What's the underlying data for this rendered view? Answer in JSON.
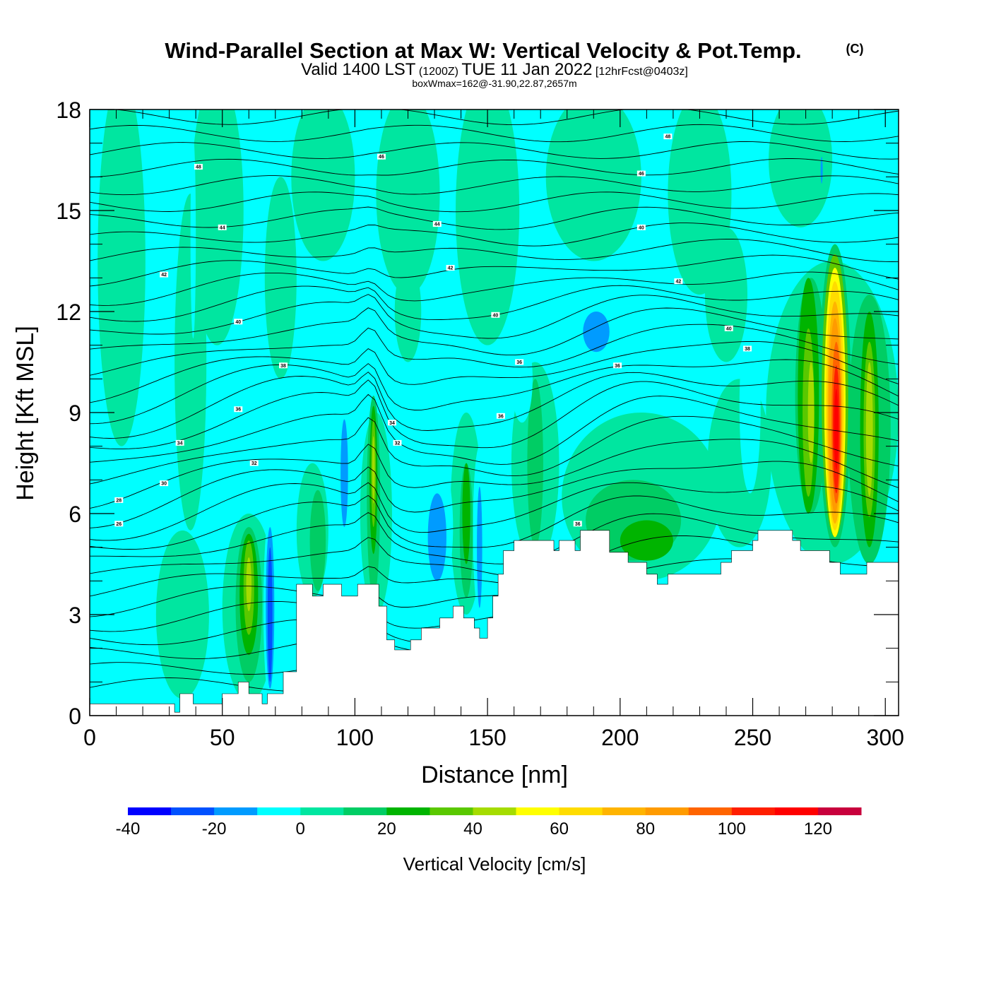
{
  "title": "Wind-Parallel Section at Max W: Vertical Velocity & Pot.Temp.",
  "title_mark": "(C)",
  "subtitle": {
    "valid_a": "Valid 1400 LST",
    "utc": "(1200Z)",
    "valid_b": "TUE 11 Jan 2022",
    "forecast": "[12hrFcst@0403z]"
  },
  "box_wmax": "boxWmax=162@-31.90,22.87,2657m",
  "chart_data": {
    "type": "heatmap",
    "title": "Wind-Parallel Section at Max W: Vertical Velocity & Pot.Temp.",
    "xlabel": "Distance [nm]",
    "ylabel": "Height [Kft MSL]",
    "xlim": [
      0,
      305
    ],
    "ylim": [
      0,
      18
    ],
    "x_ticks": [
      "0",
      "50",
      "100",
      "150",
      "200",
      "250",
      "300"
    ],
    "y_ticks": [
      "0",
      "3",
      "6",
      "9",
      "12",
      "15",
      "18"
    ],
    "x_tick_values": [
      0,
      50,
      100,
      150,
      200,
      250,
      300
    ],
    "y_tick_values": [
      0,
      3,
      6,
      9,
      12,
      15,
      18
    ],
    "terrain": [
      [
        0,
        0.35
      ],
      [
        32,
        0.35
      ],
      [
        32,
        0.1
      ],
      [
        34,
        0.1
      ],
      [
        34,
        0.65
      ],
      [
        39,
        0.65
      ],
      [
        39,
        0.35
      ],
      [
        50,
        0.35
      ],
      [
        50,
        0.65
      ],
      [
        56,
        0.65
      ],
      [
        56,
        1.0
      ],
      [
        60,
        1.0
      ],
      [
        60,
        0.65
      ],
      [
        65,
        0.65
      ],
      [
        65,
        0.35
      ],
      [
        67,
        0.35
      ],
      [
        67,
        0.65
      ],
      [
        73,
        0.65
      ],
      [
        73,
        1.3
      ],
      [
        78,
        1.3
      ],
      [
        78,
        3.9
      ],
      [
        84,
        3.9
      ],
      [
        84,
        3.55
      ],
      [
        88,
        3.55
      ],
      [
        88,
        3.9
      ],
      [
        95,
        3.9
      ],
      [
        95,
        3.55
      ],
      [
        101,
        3.55
      ],
      [
        101,
        3.9
      ],
      [
        109,
        3.9
      ],
      [
        109,
        3.25
      ],
      [
        112,
        3.25
      ],
      [
        112,
        2.25
      ],
      [
        115,
        2.25
      ],
      [
        115,
        1.95
      ],
      [
        121,
        1.95
      ],
      [
        121,
        2.25
      ],
      [
        125,
        2.25
      ],
      [
        125,
        2.6
      ],
      [
        132,
        2.6
      ],
      [
        132,
        2.9
      ],
      [
        137,
        2.9
      ],
      [
        137,
        3.25
      ],
      [
        141,
        3.25
      ],
      [
        141,
        2.9
      ],
      [
        145,
        2.9
      ],
      [
        145,
        2.6
      ],
      [
        147,
        2.6
      ],
      [
        147,
        2.3
      ],
      [
        150,
        2.3
      ],
      [
        150,
        2.9
      ],
      [
        152,
        2.9
      ],
      [
        152,
        3.55
      ],
      [
        154,
        3.55
      ],
      [
        154,
        4.2
      ],
      [
        156,
        4.2
      ],
      [
        156,
        4.9
      ],
      [
        160,
        4.9
      ],
      [
        160,
        5.2
      ],
      [
        175,
        5.2
      ],
      [
        175,
        4.9
      ],
      [
        177,
        4.9
      ],
      [
        177,
        5.2
      ],
      [
        183,
        5.2
      ],
      [
        183,
        4.9
      ],
      [
        185,
        4.9
      ],
      [
        185,
        5.5
      ],
      [
        196,
        5.5
      ],
      [
        196,
        4.85
      ],
      [
        203,
        4.85
      ],
      [
        203,
        4.55
      ],
      [
        210,
        4.55
      ],
      [
        210,
        4.2
      ],
      [
        214,
        4.2
      ],
      [
        214,
        3.9
      ],
      [
        218,
        3.9
      ],
      [
        218,
        4.2
      ],
      [
        238,
        4.2
      ],
      [
        238,
        4.55
      ],
      [
        242,
        4.55
      ],
      [
        242,
        4.9
      ],
      [
        250,
        4.9
      ],
      [
        250,
        5.2
      ],
      [
        252,
        5.2
      ],
      [
        252,
        5.5
      ],
      [
        265,
        5.5
      ],
      [
        265,
        5.2
      ],
      [
        268,
        5.2
      ],
      [
        268,
        4.9
      ],
      [
        279,
        4.9
      ],
      [
        279,
        4.55
      ],
      [
        283,
        4.55
      ],
      [
        283,
        4.2
      ],
      [
        293,
        4.2
      ],
      [
        293,
        4.55
      ],
      [
        305,
        4.55
      ],
      [
        305,
        0
      ],
      [
        0,
        0
      ]
    ],
    "w_field": [
      {
        "w": 5,
        "cx": 12,
        "cy": 13.5,
        "rx": 9,
        "ry": 5.5
      },
      {
        "w": 5,
        "cx": 38,
        "cy": 10.5,
        "rx": 6,
        "ry": 5
      },
      {
        "w": 5,
        "cx": 48,
        "cy": 15,
        "rx": 10,
        "ry": 4
      },
      {
        "w": 5,
        "cx": 88,
        "cy": 16,
        "rx": 12,
        "ry": 2.5
      },
      {
        "w": 5,
        "cx": 120,
        "cy": 15.5,
        "rx": 12,
        "ry": 3
      },
      {
        "w": 5,
        "cx": 150,
        "cy": 15,
        "rx": 12,
        "ry": 4
      },
      {
        "w": 5,
        "cx": 190,
        "cy": 16,
        "rx": 18,
        "ry": 2.5
      },
      {
        "w": 5,
        "cx": 230,
        "cy": 15.5,
        "rx": 12,
        "ry": 3
      },
      {
        "w": 5,
        "cx": 268,
        "cy": 16.5,
        "rx": 12,
        "ry": 2
      },
      {
        "w": 5,
        "cx": 72,
        "cy": 13,
        "rx": 6,
        "ry": 3
      },
      {
        "w": 5,
        "cx": 120,
        "cy": 12,
        "rx": 5,
        "ry": 1.5
      },
      {
        "w": 5,
        "cx": 240,
        "cy": 12.5,
        "rx": 8,
        "ry": 2
      },
      {
        "w": 5,
        "cx": 35,
        "cy": 3,
        "rx": 10,
        "ry": 2.5
      },
      {
        "w": 5,
        "cx": 60,
        "cy": 3.2,
        "rx": 10,
        "ry": 2.8
      },
      {
        "w": 5,
        "cx": 84,
        "cy": 5.5,
        "rx": 6,
        "ry": 2
      },
      {
        "w": 5,
        "cx": 108,
        "cy": 6,
        "rx": 6,
        "ry": 3
      },
      {
        "w": 5,
        "cx": 142,
        "cy": 6,
        "rx": 6,
        "ry": 3
      },
      {
        "w": 5,
        "cx": 168,
        "cy": 7.5,
        "rx": 9,
        "ry": 3
      },
      {
        "w": 5,
        "cx": 208,
        "cy": 6.5,
        "rx": 30,
        "ry": 2.5
      },
      {
        "w": 5,
        "cx": 245,
        "cy": 7.5,
        "rx": 12,
        "ry": 2.5
      },
      {
        "w": 5,
        "cx": 280,
        "cy": 9,
        "rx": 25,
        "ry": 4.5
      },
      {
        "w": 15,
        "cx": 60,
        "cy": 3.3,
        "rx": 5,
        "ry": 2.3
      },
      {
        "w": 15,
        "cx": 86,
        "cy": 5.2,
        "rx": 3,
        "ry": 1.5
      },
      {
        "w": 15,
        "cx": 107,
        "cy": 6.5,
        "rx": 2.5,
        "ry": 3
      },
      {
        "w": 15,
        "cx": 142,
        "cy": 5.5,
        "rx": 2.5,
        "ry": 2
      },
      {
        "w": 15,
        "cx": 168,
        "cy": 7.5,
        "rx": 3,
        "ry": 2.5
      },
      {
        "w": 15,
        "cx": 205,
        "cy": 5.8,
        "rx": 18,
        "ry": 1.2
      },
      {
        "w": 15,
        "cx": 272,
        "cy": 9.5,
        "rx": 6,
        "ry": 3.5
      },
      {
        "w": 15,
        "cx": 294,
        "cy": 8.5,
        "rx": 8,
        "ry": 4
      },
      {
        "w": 25,
        "cx": 60,
        "cy": 3.6,
        "rx": 3.5,
        "ry": 1.8
      },
      {
        "w": 25,
        "cx": 107,
        "cy": 7.0,
        "rx": 1.5,
        "ry": 2.2
      },
      {
        "w": 25,
        "cx": 142,
        "cy": 6.0,
        "rx": 1.5,
        "ry": 1.5
      },
      {
        "w": 25,
        "cx": 210,
        "cy": 5.2,
        "rx": 10,
        "ry": 0.6
      },
      {
        "w": 25,
        "cx": 271,
        "cy": 9.5,
        "rx": 4,
        "ry": 3.5
      },
      {
        "w": 25,
        "cx": 294,
        "cy": 8.5,
        "rx": 3.5,
        "ry": 3.5
      },
      {
        "w": 35,
        "cx": 60,
        "cy": 3.8,
        "rx": 2,
        "ry": 1.4
      },
      {
        "w": 35,
        "cx": 107,
        "cy": 7.2,
        "rx": 0.9,
        "ry": 1.6
      },
      {
        "w": 35,
        "cx": 271,
        "cy": 9.0,
        "rx": 2.2,
        "ry": 2.5
      },
      {
        "w": 35,
        "cx": 294,
        "cy": 8.5,
        "rx": 2.2,
        "ry": 2.6
      },
      {
        "w": 45,
        "cx": 60,
        "cy": 3.9,
        "rx": 1,
        "ry": 0.8
      },
      {
        "w": 45,
        "cx": 107,
        "cy": 7.3,
        "rx": 0.5,
        "ry": 1.0
      },
      {
        "w": 45,
        "cx": 272,
        "cy": 9.0,
        "rx": 1.2,
        "ry": 1.5
      },
      {
        "w": 45,
        "cx": 294,
        "cy": 8.5,
        "rx": 1.3,
        "ry": 2.0
      },
      {
        "w": 15,
        "cx": 281,
        "cy": 9.5,
        "rx": 6,
        "ry": 4.5
      },
      {
        "w": 35,
        "cx": 281,
        "cy": 9.5,
        "rx": 5,
        "ry": 4.2
      },
      {
        "w": 55,
        "cx": 281,
        "cy": 9.3,
        "rx": 4,
        "ry": 4.0
      },
      {
        "w": 65,
        "cx": 281,
        "cy": 9.2,
        "rx": 3.4,
        "ry": 3.7
      },
      {
        "w": 75,
        "cx": 281,
        "cy": 9.0,
        "rx": 2.8,
        "ry": 3.3
      },
      {
        "w": 85,
        "cx": 281,
        "cy": 8.9,
        "rx": 2.3,
        "ry": 2.9
      },
      {
        "w": 95,
        "cx": 281.5,
        "cy": 8.7,
        "rx": 1.8,
        "ry": 2.4
      },
      {
        "w": 105,
        "cx": 281.5,
        "cy": 8.5,
        "rx": 1.3,
        "ry": 1.9
      },
      {
        "w": 115,
        "cx": 281.5,
        "cy": 8.5,
        "rx": 0.8,
        "ry": 1.2
      },
      {
        "w": -5,
        "cx": 39,
        "cy": 14.2,
        "rx": 1,
        "ry": 3
      },
      {
        "w": -5,
        "cx": 68,
        "cy": 3.2,
        "rx": 2.5,
        "ry": 2.8
      },
      {
        "w": -15,
        "cx": 68,
        "cy": 3.2,
        "rx": 1.6,
        "ry": 2.4
      },
      {
        "w": -25,
        "cx": 68,
        "cy": 3.0,
        "rx": 0.9,
        "ry": 2.0
      },
      {
        "w": -5,
        "cx": 95,
        "cy": 7.5,
        "rx": 3.2,
        "ry": 2.5
      },
      {
        "w": -15,
        "cx": 96,
        "cy": 7.2,
        "rx": 1.4,
        "ry": 1.6
      },
      {
        "w": -5,
        "cx": 130,
        "cy": 5.6,
        "rx": 7,
        "ry": 2.3
      },
      {
        "w": -15,
        "cx": 131,
        "cy": 5.3,
        "rx": 3.5,
        "ry": 1.3
      },
      {
        "w": -5,
        "cx": 147,
        "cy": 5.5,
        "rx": 2.5,
        "ry": 2.5
      },
      {
        "w": -15,
        "cx": 147,
        "cy": 5.0,
        "rx": 1.0,
        "ry": 1.8
      },
      {
        "w": -5,
        "cx": 163,
        "cy": 10.0,
        "rx": 4,
        "ry": 1.3
      },
      {
        "w": -5,
        "cx": 197,
        "cy": 11.2,
        "rx": 12,
        "ry": 0.9
      },
      {
        "w": -15,
        "cx": 191,
        "cy": 11.4,
        "rx": 5,
        "ry": 0.6
      },
      {
        "w": -5,
        "cx": 219,
        "cy": 10.3,
        "rx": 7,
        "ry": 0.9
      },
      {
        "w": -5,
        "cx": 249,
        "cy": 9.2,
        "rx": 4,
        "ry": 2.6
      },
      {
        "w": -5,
        "cx": 282,
        "cy": 15.3,
        "rx": 1.2,
        "ry": 1.3
      },
      {
        "w": -15,
        "cx": 276,
        "cy": 16.2,
        "rx": 0.4,
        "ry": 0.4
      }
    ],
    "theta_labels": [
      {
        "x": 41,
        "y": 16.3,
        "text": "48"
      },
      {
        "x": 110,
        "y": 16.6,
        "text": "46"
      },
      {
        "x": 218,
        "y": 17.2,
        "text": "48"
      },
      {
        "x": 208,
        "y": 16.1,
        "text": "46"
      },
      {
        "x": 50,
        "y": 14.5,
        "text": "44"
      },
      {
        "x": 131,
        "y": 14.6,
        "text": "44"
      },
      {
        "x": 208,
        "y": 14.5,
        "text": "40"
      },
      {
        "x": 28,
        "y": 13.1,
        "text": "42"
      },
      {
        "x": 136,
        "y": 13.3,
        "text": "42"
      },
      {
        "x": 222,
        "y": 12.9,
        "text": "42"
      },
      {
        "x": 56,
        "y": 11.7,
        "text": "40"
      },
      {
        "x": 153,
        "y": 11.9,
        "text": "40"
      },
      {
        "x": 241,
        "y": 11.5,
        "text": "40"
      },
      {
        "x": 73,
        "y": 10.4,
        "text": "38"
      },
      {
        "x": 162,
        "y": 10.5,
        "text": "36"
      },
      {
        "x": 199,
        "y": 10.4,
        "text": "36"
      },
      {
        "x": 248,
        "y": 10.9,
        "text": "38"
      },
      {
        "x": 56,
        "y": 9.1,
        "text": "36"
      },
      {
        "x": 155,
        "y": 8.9,
        "text": "36"
      },
      {
        "x": 34,
        "y": 8.1,
        "text": "34"
      },
      {
        "x": 114,
        "y": 8.7,
        "text": "34"
      },
      {
        "x": 116,
        "y": 8.1,
        "text": "32"
      },
      {
        "x": 62,
        "y": 7.5,
        "text": "32"
      },
      {
        "x": 28,
        "y": 6.9,
        "text": "30"
      },
      {
        "x": 11,
        "y": 6.4,
        "text": "28"
      },
      {
        "x": 11,
        "y": 5.7,
        "text": "26"
      },
      {
        "x": 184,
        "y": 5.7,
        "text": "36"
      }
    ],
    "colorbar": {
      "label": "Vertical Velocity [cm/s]",
      "min": -40,
      "max": 130,
      "step": 10,
      "tick_labels": [
        "-40",
        "-20",
        "0",
        "20",
        "40",
        "60",
        "80",
        "100",
        "120"
      ],
      "tick_values": [
        -40,
        -20,
        0,
        20,
        40,
        60,
        80,
        100,
        120
      ],
      "colors": [
        "#0000ff",
        "#0051ff",
        "#009bff",
        "#00ffff",
        "#00e6a0",
        "#00cd64",
        "#00b400",
        "#5ac800",
        "#a5dc00",
        "#ffff00",
        "#ffdc00",
        "#ffb400",
        "#ff9b00",
        "#ff6400",
        "#ff1e00",
        "#ff0000",
        "#c8003c"
      ]
    }
  }
}
